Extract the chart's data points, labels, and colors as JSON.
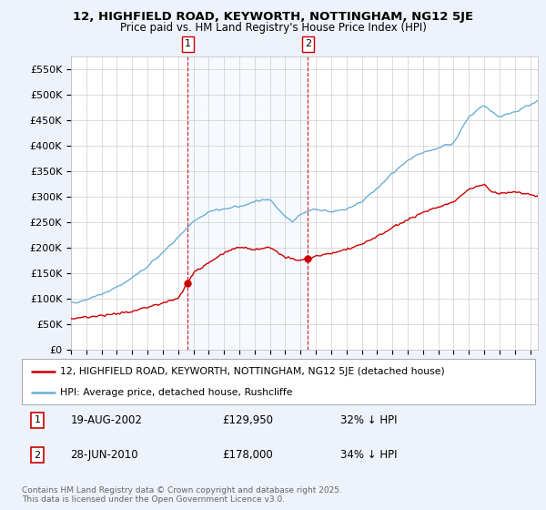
{
  "title1": "12, HIGHFIELD ROAD, KEYWORTH, NOTTINGHAM, NG12 5JE",
  "title2": "Price paid vs. HM Land Registry's House Price Index (HPI)",
  "xlim_start": 1995.0,
  "xlim_end": 2025.5,
  "ylim_min": 0,
  "ylim_max": 575000,
  "yticks": [
    0,
    50000,
    100000,
    150000,
    200000,
    250000,
    300000,
    350000,
    400000,
    450000,
    500000,
    550000
  ],
  "ytick_labels": [
    "£0",
    "£50K",
    "£100K",
    "£150K",
    "£200K",
    "£250K",
    "£300K",
    "£350K",
    "£400K",
    "£450K",
    "£500K",
    "£550K"
  ],
  "hpi_color": "#6baed6",
  "price_color": "#cc0000",
  "shade_color": "#ddeeff",
  "marker1_x": 2002.636,
  "marker1_y": 129950,
  "marker2_x": 2010.486,
  "marker2_y": 178000,
  "annotation1": [
    "1",
    "19-AUG-2002",
    "£129,950",
    "32% ↓ HPI"
  ],
  "annotation2": [
    "2",
    "28-JUN-2010",
    "£178,000",
    "34% ↓ HPI"
  ],
  "legend_line1": "12, HIGHFIELD ROAD, KEYWORTH, NOTTINGHAM, NG12 5JE (detached house)",
  "legend_line2": "HPI: Average price, detached house, Rushcliffe",
  "footnote": "Contains HM Land Registry data © Crown copyright and database right 2025.\nThis data is licensed under the Open Government Licence v3.0.",
  "background_color": "#eef2fb",
  "plot_bg_color": "#ffffff",
  "grid_color": "#cccccc"
}
